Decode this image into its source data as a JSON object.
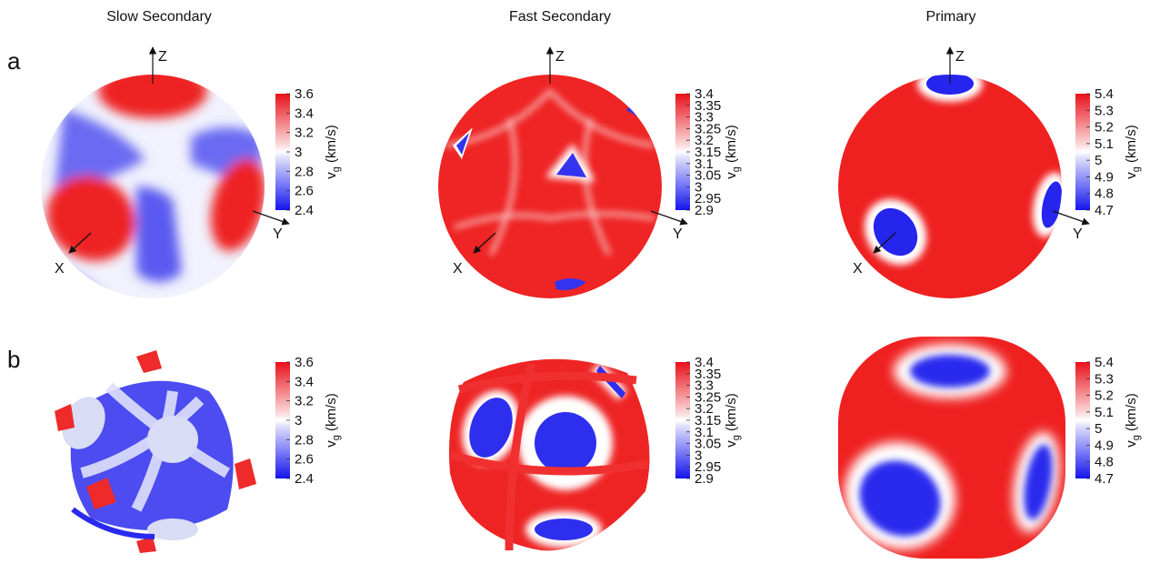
{
  "columns": [
    "Slow Secondary",
    "Fast Secondary",
    "Primary"
  ],
  "rows": [
    "a",
    "b"
  ],
  "axis_labels": {
    "x": "X",
    "y": "Y",
    "z": "Z"
  },
  "colorbar_label": "v_g (km/s)",
  "colormap": {
    "low": "#2a2af0",
    "mid": "#ffffff",
    "high": "#ee1c1c",
    "neutral_patch": "#d8dcf4"
  },
  "chart_data": [
    {
      "type": "heatmap",
      "title": "Slow Secondary",
      "row": "a",
      "unit": "km/s",
      "colorbar_ticks": [
        "3.6",
        "3.4",
        "3.2",
        "3",
        "2.8",
        "2.6",
        "2.4"
      ],
      "range": [
        2.4,
        3.6
      ]
    },
    {
      "type": "heatmap",
      "title": "Fast Secondary",
      "row": "a",
      "unit": "km/s",
      "colorbar_ticks": [
        "3.4",
        "3.35",
        "3.3",
        "3.25",
        "3.2",
        "3.15",
        "3.1",
        "3.05",
        "3",
        "2.95",
        "2.9"
      ],
      "range": [
        2.9,
        3.4
      ]
    },
    {
      "type": "heatmap",
      "title": "Primary",
      "row": "a",
      "unit": "km/s",
      "colorbar_ticks": [
        "5.4",
        "5.3",
        "5.2",
        "5.1",
        "5",
        "4.9",
        "4.8",
        "4.7"
      ],
      "range": [
        4.7,
        5.4
      ]
    },
    {
      "type": "heatmap",
      "title": "Slow Secondary",
      "row": "b",
      "unit": "km/s",
      "colorbar_ticks": [
        "3.6",
        "3.4",
        "3.2",
        "3",
        "2.8",
        "2.6",
        "2.4"
      ],
      "range": [
        2.4,
        3.6
      ]
    },
    {
      "type": "heatmap",
      "title": "Fast Secondary",
      "row": "b",
      "unit": "km/s",
      "colorbar_ticks": [
        "3.4",
        "3.35",
        "3.3",
        "3.25",
        "3.2",
        "3.15",
        "3.1",
        "3.05",
        "3",
        "2.95",
        "2.9"
      ],
      "range": [
        2.9,
        3.4
      ]
    },
    {
      "type": "heatmap",
      "title": "Primary",
      "row": "b",
      "unit": "km/s",
      "colorbar_ticks": [
        "5.4",
        "5.3",
        "5.2",
        "5.1",
        "5",
        "4.9",
        "4.8",
        "4.7"
      ],
      "range": [
        4.7,
        5.4
      ]
    }
  ]
}
